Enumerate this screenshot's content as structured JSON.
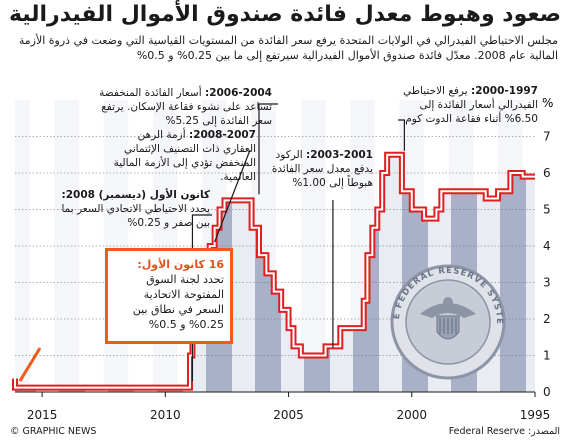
{
  "title": "صعود وهبوط معدل فائدة صندوق الأموال الفيدرالية",
  "subtitle": "مجلس الاحتياطي الفيدرالي في الولايات المتحدة يرفع سعر الفائدة من المستويات القياسية التي وضعت في ذروة الأزمة المالية عام 2008. معدّل فائدة صندوق الأموال الفيدرالية سيرتفع إلى ما بين 0.25% و 0.5%",
  "annotations": {
    "a1997": {
      "date": "2000-1997:",
      "text": "يرفع الاحتياطي الفيدرالي أسعار الفائدة إلى 6.50% أثناء فقاعة الدوت كوم"
    },
    "a2001": {
      "date": "2003-2001:",
      "text": "الركود يدفع معدل سعر الفائدة هبوطاً إلى 1.00%"
    },
    "a2004": {
      "date": "2006-2004:",
      "text": "أسعار الفائدة المنخفضة تساعد على نشوء فقاعة الإسكان. يرتفع سعر الفائدة إلى 5.25%"
    },
    "a2007": {
      "date": "2008-2007:",
      "text": "أزمة الرهن العقاري ذات التصنيف الإئتماني المنخفض تؤدي إلى الأزمة المالية العالمية."
    },
    "a2008": {
      "date": "كانون الأول (ديسمبر) 2008:",
      "text": "يحدد الاحتياطي الاتحادي السعر بما بين صفر و 0.25%"
    },
    "callout": {
      "date": "16 كانون الأول:",
      "text": "تحدد لجنة السوق المفتوحة الاتحادية السعر في نطاق بين 0.25% و 0.5%"
    }
  },
  "footer": {
    "left": "© GRAPHIC NEWS",
    "right": "المصدر: Federal Reserve"
  },
  "seal": {
    "text": "THE FEDERAL RESERVE SYSTEM",
    "icon": "federal-reserve-seal-icon"
  },
  "colors": {
    "line": "#e01f1f",
    "shade_dark": "#a8b1c8",
    "shade_light": "#e9ecf3",
    "callout_border": "#f05a1a",
    "grid": "#666666"
  },
  "chart_data": {
    "type": "line",
    "x_direction": "reversed",
    "ylabel": "%",
    "ylim": [
      0,
      8
    ],
    "yticks": [
      0,
      1,
      2,
      3,
      4,
      5,
      6,
      7,
      8
    ],
    "xticks": [
      2015,
      2010,
      2005,
      2000,
      1995
    ],
    "xlim": [
      2016.1,
      1995
    ],
    "series": [
      {
        "x": [
          1995.0,
          1995.5,
          1996.0,
          1996.5,
          1997.0,
          1997.5,
          1998.0,
          1998.5,
          1998.8,
          1999.0,
          1999.5,
          2000.0,
          2000.4,
          2000.9,
          2001.0,
          2001.2,
          2001.4,
          2001.6,
          2001.8,
          2001.95,
          2002.5,
          2002.9,
          2003.5,
          2004.0,
          2004.5,
          2004.8,
          2005.0,
          2005.3,
          2005.6,
          2005.9,
          2006.2,
          2006.5,
          2007.0,
          2007.6,
          2007.8,
          2008.0,
          2008.2,
          2008.4,
          2008.9,
          2009.0,
          2010.0,
          2011.0,
          2012.0,
          2013.0,
          2014.0,
          2015.0,
          2015.96,
          2016.1
        ],
        "y": [
          5.9,
          6.0,
          5.5,
          5.3,
          5.5,
          5.5,
          5.5,
          5.5,
          5.0,
          4.75,
          5.0,
          5.5,
          6.5,
          6.5,
          6.0,
          5.0,
          4.5,
          3.75,
          2.5,
          1.75,
          1.75,
          1.25,
          1.0,
          1.0,
          1.25,
          1.75,
          2.25,
          2.75,
          3.25,
          3.75,
          4.5,
          5.25,
          5.25,
          5.0,
          4.5,
          4.0,
          3.0,
          2.0,
          1.0,
          0.12,
          0.12,
          0.12,
          0.12,
          0.12,
          0.12,
          0.12,
          0.12,
          0.37
        ]
      }
    ]
  }
}
